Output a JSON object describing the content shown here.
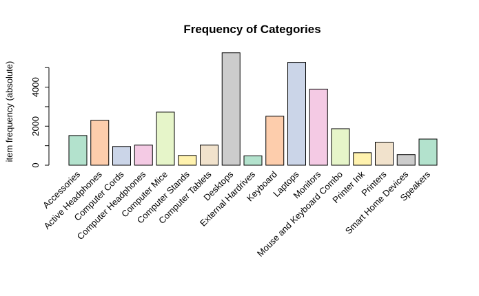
{
  "chart_data": {
    "type": "bar",
    "title": "Frequency of Categories",
    "xlabel": "",
    "ylabel": "item frequency (absolute)",
    "ylim": [
      0,
      5000
    ],
    "yticks": [
      0,
      2000,
      4000
    ],
    "grid": false,
    "categories": [
      "Accessories",
      "Active Headphones",
      "Computer Cords",
      "Computer Headphones",
      "Computer Mice",
      "Computer Stands",
      "Computer Tablets",
      "Desktops",
      "External Hardrives",
      "Keyboard",
      "Laptops",
      "Monitors",
      "Mouse and Keyboard Combo",
      "Printer Ink",
      "Printers",
      "Smart Home Devices",
      "Speakers"
    ],
    "values": [
      1520,
      2300,
      960,
      1030,
      2720,
      500,
      1030,
      5760,
      480,
      2510,
      5270,
      3900,
      1870,
      640,
      1180,
      540,
      1340
    ],
    "colors": [
      "#b3e2cd",
      "#fdcdac",
      "#cbd5e8",
      "#f4cae4",
      "#e6f5c9",
      "#fff2ae",
      "#f1e2cc",
      "#cccccc",
      "#b3e2cd",
      "#fdcdac",
      "#cbd5e8",
      "#f4cae4",
      "#e6f5c9",
      "#fff2ae",
      "#f1e2cc",
      "#cccccc",
      "#b3e2cd"
    ]
  }
}
